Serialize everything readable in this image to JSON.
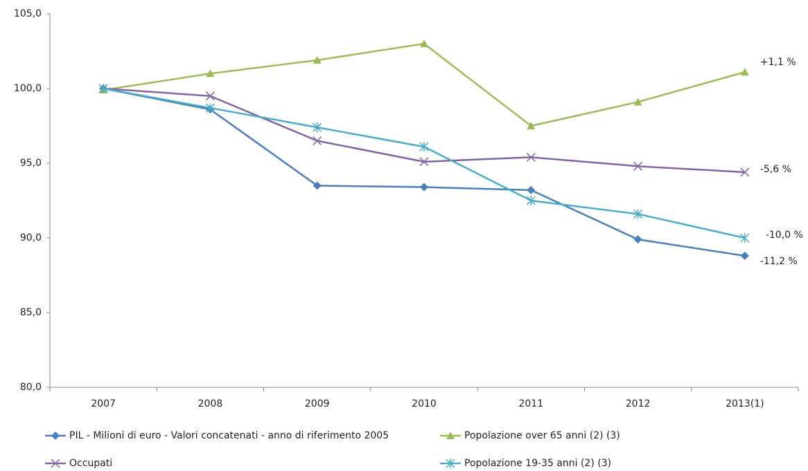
{
  "chart_data": {
    "type": "line",
    "categories": [
      "2007",
      "2008",
      "2009",
      "2010",
      "2011",
      "2012",
      "2013(1)"
    ],
    "ylim": [
      80,
      105
    ],
    "yticks": [
      {
        "value": 80,
        "label": "80,0"
      },
      {
        "value": 85,
        "label": "85,0"
      },
      {
        "value": 90,
        "label": "90,0"
      },
      {
        "value": 95,
        "label": "95,0"
      },
      {
        "value": 100,
        "label": "100,0"
      },
      {
        "value": 105,
        "label": "105,0"
      }
    ],
    "grid": false,
    "legend": "bottom",
    "series": [
      {
        "name": "PIL - Milioni di euro - Valori concatenati - anno di riferimento 2005",
        "color": "#4a7ebb",
        "marker": "diamond",
        "values": [
          100,
          98.6,
          93.5,
          93.4,
          93.2,
          89.9,
          88.8
        ],
        "end_label": "-11,2 %"
      },
      {
        "name": "Popolazione over 65 anni (2) (3)",
        "color": "#9bbb59",
        "marker": "triangle",
        "values": [
          99.9,
          101.0,
          101.9,
          103.0,
          97.5,
          99.1,
          101.1
        ],
        "end_label": "+1,1 %"
      },
      {
        "name": "Occupati",
        "color": "#8064a2",
        "marker": "x",
        "values": [
          100,
          99.5,
          96.5,
          95.1,
          95.4,
          94.8,
          94.4
        ],
        "end_label": "-5,6 %"
      },
      {
        "name": "Popolazione 19-35 anni (2) (3)",
        "color": "#4bacc6",
        "marker": "star",
        "values": [
          100,
          98.7,
          97.4,
          96.1,
          92.5,
          91.6,
          90.0
        ],
        "end_label": "-10,0 %"
      }
    ]
  }
}
